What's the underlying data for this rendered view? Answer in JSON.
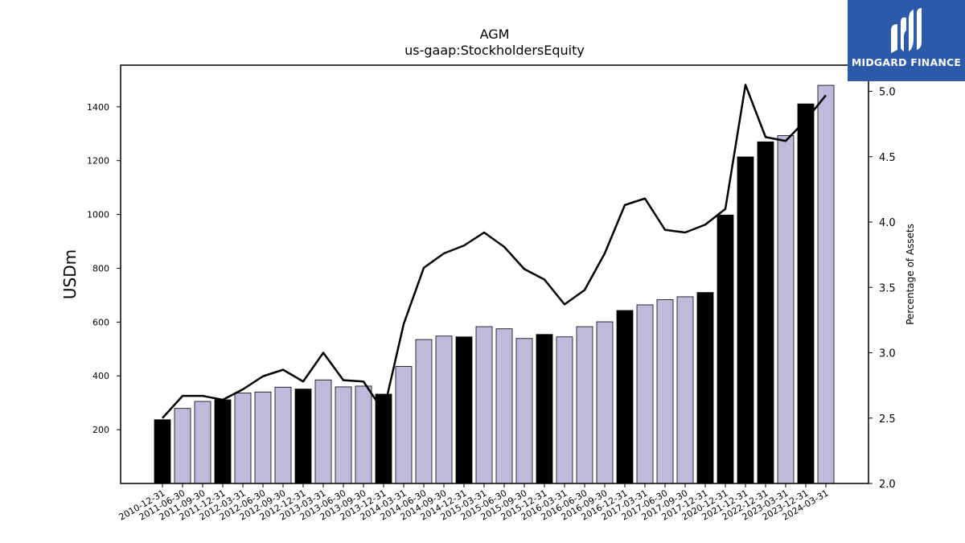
{
  "chart_data": {
    "type": "bar",
    "title": "AGM",
    "subtitle": "us-gaap:StockholdersEquity",
    "ylabel": "USDm",
    "y2label": "Percentage of Assets",
    "ylim": [
      0,
      1555
    ],
    "y2lim": [
      2.0,
      5.2
    ],
    "yticks": [
      200,
      400,
      600,
      800,
      1000,
      1200,
      1400
    ],
    "y2ticks": [
      2.0,
      2.5,
      3.0,
      3.5,
      4.0,
      4.5,
      5.0
    ],
    "grid": false,
    "categories": [
      "2010-12-31",
      "2011-06-30",
      "2011-09-30",
      "2011-12-31",
      "2012-03-31",
      "2012-06-30",
      "2012-09-30",
      "2012-12-31",
      "2013-03-31",
      "2013-06-30",
      "2013-09-30",
      "2013-12-31",
      "2014-03-31",
      "2014-06-30",
      "2014-09-30",
      "2014-12-31",
      "2015-03-31",
      "2015-06-30",
      "2015-09-30",
      "2015-12-31",
      "2016-03-31",
      "2016-06-30",
      "2016-09-30",
      "2016-12-31",
      "2017-03-31",
      "2017-06-30",
      "2017-09-30",
      "2017-12-31",
      "2020-12-31",
      "2021-12-31",
      "2022-12-31",
      "2023-03-31",
      "2023-12-31",
      "2024-03-31"
    ],
    "series": [
      {
        "type": "bar",
        "axis": "left",
        "values": [
          237,
          279,
          305,
          311,
          336,
          340,
          358,
          351,
          385,
          359,
          362,
          332,
          435,
          535,
          548,
          545,
          583,
          575,
          539,
          554,
          545,
          583,
          601,
          643,
          664,
          683,
          694,
          710,
          998,
          1214,
          1270,
          1293,
          1411,
          1480
        ],
        "year_end": [
          true,
          false,
          false,
          true,
          false,
          false,
          false,
          true,
          false,
          false,
          false,
          true,
          false,
          false,
          false,
          true,
          false,
          false,
          false,
          true,
          false,
          false,
          false,
          true,
          false,
          false,
          false,
          true,
          true,
          true,
          true,
          false,
          true,
          false
        ]
      },
      {
        "type": "line",
        "axis": "right",
        "values": [
          2.5,
          2.67,
          2.67,
          2.64,
          2.72,
          2.82,
          2.87,
          2.78,
          3.0,
          2.79,
          2.78,
          2.55,
          3.22,
          3.65,
          3.76,
          3.82,
          3.92,
          3.81,
          3.64,
          3.56,
          3.37,
          3.48,
          3.76,
          4.13,
          4.18,
          3.94,
          3.92,
          3.98,
          4.1,
          5.05,
          4.65,
          4.62,
          4.78,
          4.97
        ]
      }
    ],
    "colors": {
      "year_end_bar": "#000000",
      "other_bar": "#bdbadb",
      "bar_edge": "#000000",
      "line": "#000000"
    }
  },
  "logo": {
    "text": "MIDGARD FINANCE",
    "background": "#2c5aa8"
  }
}
